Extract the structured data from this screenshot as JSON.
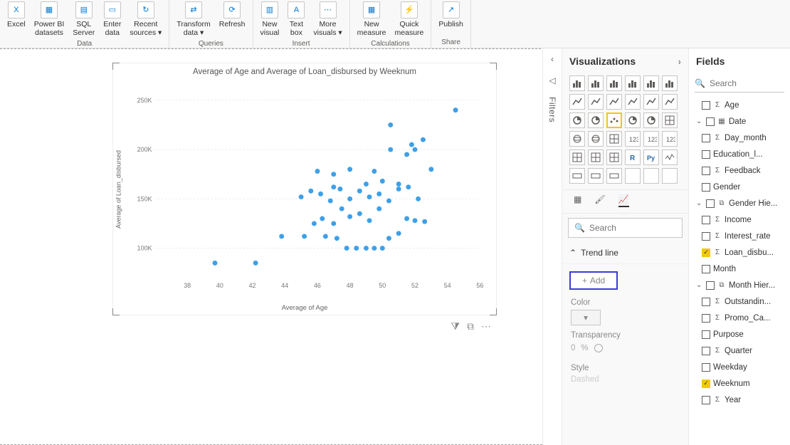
{
  "ribbon": {
    "groups": [
      {
        "label": "Data",
        "items": [
          {
            "label": "Excel",
            "icon": "X"
          },
          {
            "label": "Power BI\ndatasets",
            "icon": "▦"
          },
          {
            "label": "SQL\nServer",
            "icon": "▤"
          },
          {
            "label": "Enter\ndata",
            "icon": "▭"
          },
          {
            "label": "Recent\nsources ▾",
            "icon": "↻"
          }
        ]
      },
      {
        "label": "Queries",
        "items": [
          {
            "label": "Transform\ndata ▾",
            "icon": "⇄"
          },
          {
            "label": "Refresh",
            "icon": "⟳"
          }
        ]
      },
      {
        "label": "Insert",
        "items": [
          {
            "label": "New\nvisual",
            "icon": "▥"
          },
          {
            "label": "Text\nbox",
            "icon": "A"
          },
          {
            "label": "More\nvisuals ▾",
            "icon": "⋯"
          }
        ]
      },
      {
        "label": "Calculations",
        "items": [
          {
            "label": "New\nmeasure",
            "icon": "▦"
          },
          {
            "label": "Quick\nmeasure",
            "icon": "⚡"
          }
        ]
      },
      {
        "label": "Share",
        "items": [
          {
            "label": "Publish",
            "icon": "↗"
          }
        ]
      }
    ]
  },
  "filters_label": "Filters",
  "viz": {
    "title": "Visualizations",
    "search_placeholder": "Search",
    "section": "Trend line",
    "add": "Add",
    "color_label": "Color",
    "transparency_label": "Transparency",
    "transparency_value": "0",
    "transparency_unit": "%",
    "style_label": "Style",
    "style_value": "Dashed"
  },
  "fields": {
    "title": "Fields",
    "search_placeholder": "Search",
    "rows": [
      {
        "pad": "nested",
        "checked": false,
        "icon": "Σ",
        "label": "Age"
      },
      {
        "pad": "nested2",
        "chev": "v",
        "checked": false,
        "icon": "▦",
        "label": "Date"
      },
      {
        "pad": "nested",
        "checked": false,
        "icon": "Σ",
        "label": "Day_month"
      },
      {
        "pad": "nested",
        "checked": false,
        "icon": "",
        "label": "Education_l..."
      },
      {
        "pad": "nested",
        "checked": false,
        "icon": "Σ",
        "label": "Feedback"
      },
      {
        "pad": "nested",
        "checked": false,
        "icon": "",
        "label": "Gender"
      },
      {
        "pad": "nested2",
        "chev": "v",
        "checked": false,
        "icon": "⧉",
        "label": "Gender Hie..."
      },
      {
        "pad": "nested",
        "checked": false,
        "icon": "Σ",
        "label": "Income"
      },
      {
        "pad": "nested",
        "checked": false,
        "icon": "Σ",
        "label": "Interest_rate"
      },
      {
        "pad": "nested",
        "checked": true,
        "icon": "Σ",
        "label": "Loan_disbu..."
      },
      {
        "pad": "nested",
        "checked": false,
        "icon": "",
        "label": "Month"
      },
      {
        "pad": "nested2",
        "chev": "v",
        "checked": false,
        "icon": "⧉",
        "label": "Month Hier..."
      },
      {
        "pad": "nested",
        "checked": false,
        "icon": "Σ",
        "label": "Outstandin..."
      },
      {
        "pad": "nested",
        "checked": false,
        "icon": "Σ",
        "label": "Promo_Ca..."
      },
      {
        "pad": "nested",
        "checked": false,
        "icon": "",
        "label": "Purpose"
      },
      {
        "pad": "nested",
        "checked": false,
        "icon": "Σ",
        "label": "Quarter"
      },
      {
        "pad": "nested",
        "checked": false,
        "icon": "",
        "label": "Weekday"
      },
      {
        "pad": "nested",
        "checked": true,
        "icon": "",
        "label": "Weeknum"
      },
      {
        "pad": "nested",
        "checked": false,
        "icon": "Σ",
        "label": "Year"
      }
    ]
  },
  "chart": {
    "title": "Average of Age and Average of Loan_disbursed by Weeknum",
    "xlabel": "Average of Age",
    "ylabel": "Average of Loan_disbursed",
    "xlim": [
      36,
      56
    ],
    "ylim": [
      70000,
      260000
    ],
    "xticks": [
      38,
      40,
      42,
      44,
      46,
      48,
      50,
      52,
      54,
      56
    ],
    "yticks": [
      100000,
      150000,
      200000,
      250000
    ],
    "ytick_labels": [
      "100K",
      "150K",
      "200K",
      "250K"
    ],
    "point_color": "#3ea0e8",
    "point_radius": 3.5,
    "grid_color": "#e8e8e8",
    "axis_color": "#cfcfcf",
    "text_color": "#777777",
    "points": [
      [
        39.7,
        85000
      ],
      [
        42.2,
        85000
      ],
      [
        43.8,
        112000
      ],
      [
        45.2,
        112000
      ],
      [
        46.5,
        112000
      ],
      [
        47.2,
        110000
      ],
      [
        47.8,
        100000
      ],
      [
        48.4,
        100000
      ],
      [
        49.0,
        100000
      ],
      [
        49.5,
        100000
      ],
      [
        50.0,
        100000
      ],
      [
        45.8,
        125000
      ],
      [
        46.3,
        130000
      ],
      [
        47.0,
        125000
      ],
      [
        47.5,
        140000
      ],
      [
        48.0,
        132000
      ],
      [
        48.6,
        135000
      ],
      [
        49.2,
        128000
      ],
      [
        49.8,
        140000
      ],
      [
        50.4,
        110000
      ],
      [
        51.0,
        115000
      ],
      [
        51.5,
        130000
      ],
      [
        52.0,
        128000
      ],
      [
        52.6,
        127000
      ],
      [
        45.0,
        152000
      ],
      [
        45.6,
        158000
      ],
      [
        46.2,
        155000
      ],
      [
        46.8,
        148000
      ],
      [
        47.4,
        160000
      ],
      [
        48.0,
        150000
      ],
      [
        48.6,
        158000
      ],
      [
        49.2,
        152000
      ],
      [
        49.8,
        155000
      ],
      [
        50.4,
        148000
      ],
      [
        51.0,
        160000
      ],
      [
        51.6,
        162000
      ],
      [
        52.2,
        150000
      ],
      [
        46.0,
        178000
      ],
      [
        47.0,
        175000
      ],
      [
        48.0,
        180000
      ],
      [
        49.5,
        178000
      ],
      [
        50.5,
        200000
      ],
      [
        51.5,
        195000
      ],
      [
        52.0,
        200000
      ],
      [
        52.5,
        210000
      ],
      [
        53.0,
        180000
      ],
      [
        47.0,
        162000
      ],
      [
        49.0,
        165000
      ],
      [
        50.0,
        168000
      ],
      [
        50.5,
        225000
      ],
      [
        51.0,
        165000
      ],
      [
        51.8,
        205000
      ],
      [
        54.5,
        240000
      ]
    ]
  }
}
